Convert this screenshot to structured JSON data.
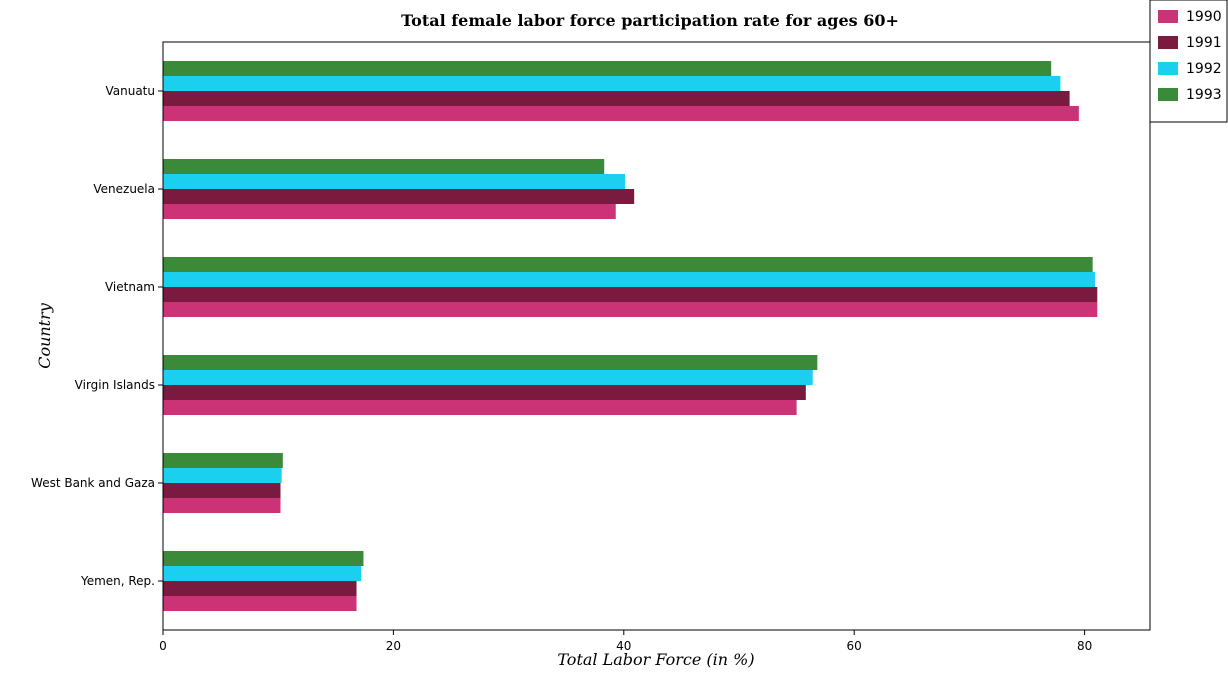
{
  "chart_data": {
    "type": "bar",
    "orientation": "horizontal",
    "title": "Total female labor force participation rate for ages 60+",
    "xlabel": "Total Labor Force (in %)",
    "ylabel": "Country",
    "xlim": [
      0,
      85
    ],
    "x_ticks": [
      "0",
      "20",
      "40",
      "60",
      "80"
    ],
    "categories": [
      "Vanuatu",
      "Venezuela",
      "Vietnam",
      "Virgin Islands",
      "West Bank and Gaza",
      "Yemen, Rep."
    ],
    "series": [
      {
        "name": "1990",
        "color": "#cc3377",
        "values": [
          79.5,
          39.3,
          81.1,
          55.0,
          10.2,
          16.8
        ]
      },
      {
        "name": "1991",
        "color": "#7a1a3f",
        "values": [
          78.7,
          40.9,
          81.1,
          55.8,
          10.2,
          16.8
        ]
      },
      {
        "name": "1992",
        "color": "#1ad0ee",
        "values": [
          77.9,
          40.1,
          80.9,
          56.4,
          10.3,
          17.2
        ]
      },
      {
        "name": "1993",
        "color": "#3a8a3a",
        "values": [
          77.1,
          38.3,
          80.7,
          56.8,
          10.4,
          17.4
        ]
      }
    ],
    "grid": false,
    "legend_position": "top-right"
  }
}
